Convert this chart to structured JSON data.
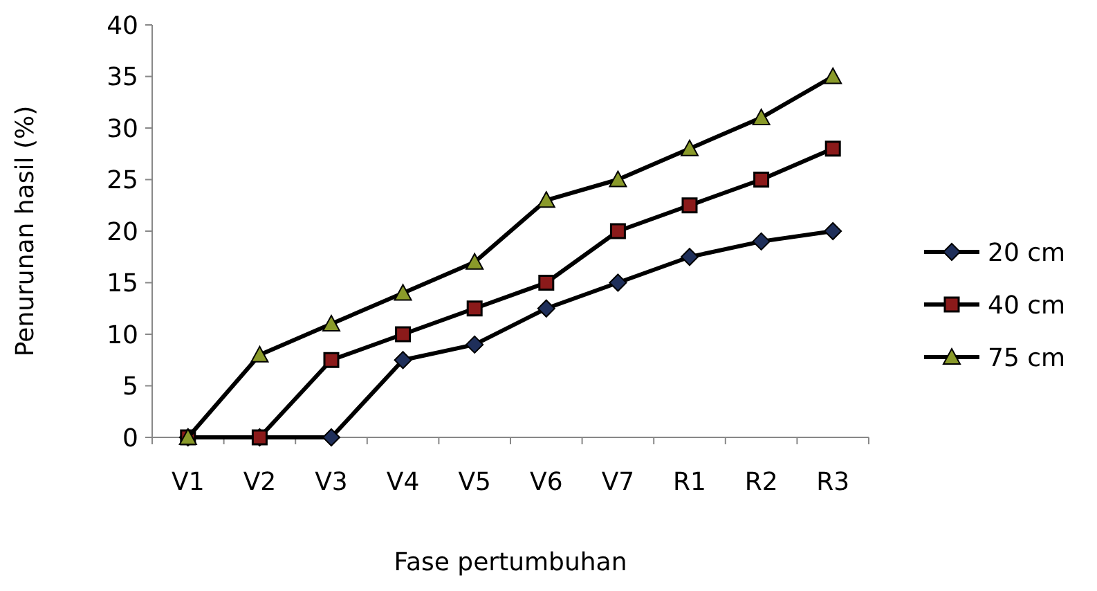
{
  "chart_data": {
    "type": "line",
    "xlabel": "Fase pertumbuhan",
    "ylabel": "Penurunan hasil (%)",
    "categories": [
      "V1",
      "V2",
      "V3",
      "V4",
      "V5",
      "V6",
      "V7",
      "R1",
      "R2",
      "R3"
    ],
    "ylim": [
      0,
      40
    ],
    "yticks": [
      0,
      5,
      10,
      15,
      20,
      25,
      30,
      35,
      40
    ],
    "grid": false,
    "legend": "right",
    "series": [
      {
        "name": "20 cm",
        "color": "#000000",
        "marker": "diamond",
        "values": [
          0,
          0,
          0,
          7.5,
          9,
          12.5,
          15,
          17.5,
          19,
          20
        ]
      },
      {
        "name": "40 cm",
        "color": "#000000",
        "marker": "square",
        "values": [
          0,
          0,
          7.5,
          10,
          12.5,
          15,
          20,
          22.5,
          25,
          28
        ]
      },
      {
        "name": "75 cm",
        "color": "#000000",
        "marker": "triangle",
        "values": [
          0,
          8,
          11,
          14,
          17,
          23,
          25,
          28,
          31,
          35
        ]
      }
    ]
  }
}
